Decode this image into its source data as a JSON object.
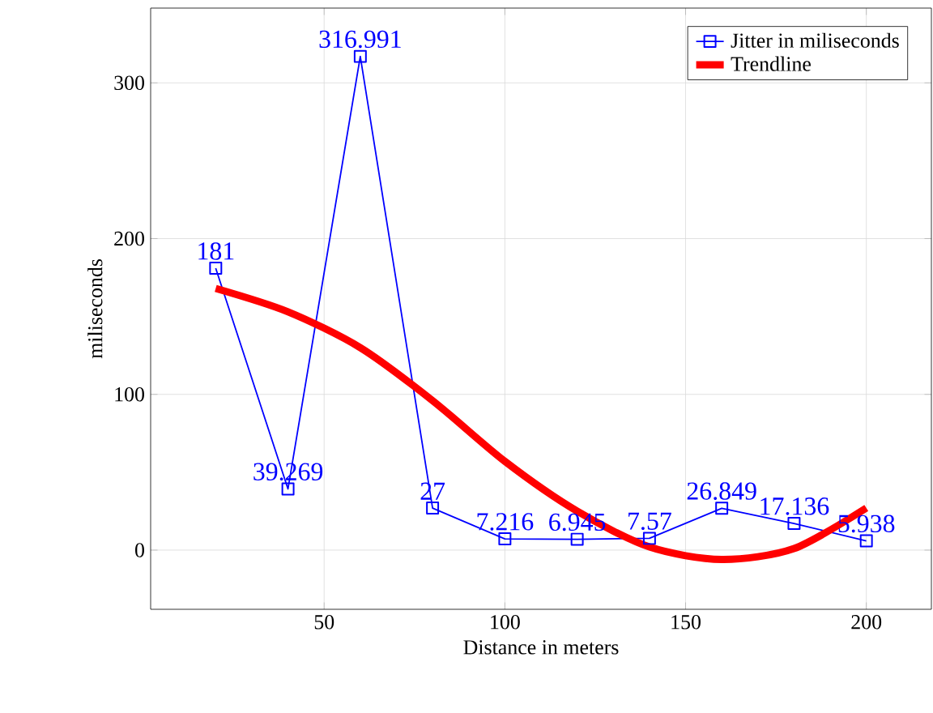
{
  "chart_data": {
    "type": "line",
    "xlabel": "Distance in meters",
    "ylabel": "miliseconds",
    "xlim": [
      2,
      218
    ],
    "ylim": [
      -38,
      348
    ],
    "xticks": [
      50,
      100,
      150,
      200
    ],
    "yticks": [
      0,
      100,
      200,
      300
    ],
    "grid": true,
    "legend": "top right",
    "series": [
      {
        "name": "Jitter in miliseconds",
        "color": "#0000ff",
        "marker": "square",
        "data_labels": true,
        "x": [
          20,
          40,
          60,
          80,
          100,
          120,
          140,
          160,
          180,
          200
        ],
        "values": [
          181,
          39.269,
          316.991,
          27,
          7.216,
          6.945,
          7.57,
          26.849,
          17.136,
          5.938
        ]
      },
      {
        "name": "Trendline",
        "color": "#ff0000",
        "marker": "none",
        "x": [
          20,
          40,
          60,
          80,
          100,
          120,
          140,
          160,
          180,
          200
        ],
        "values": [
          168,
          153,
          130,
          96,
          57,
          25,
          2,
          -6,
          1,
          27
        ]
      }
    ]
  }
}
